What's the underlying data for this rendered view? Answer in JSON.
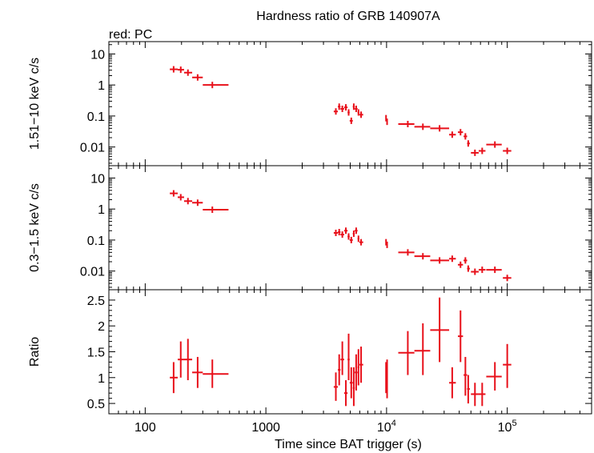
{
  "chart_data": {
    "type": "scatter",
    "title": "Hardness ratio of GRB 140907A",
    "subtitle": "red: PC",
    "xlabel": "Time since BAT trigger (s)",
    "xscale": "log",
    "xlim": [
      50,
      500000
    ],
    "x_tick_labels": [
      "100",
      "1000",
      "10",
      "10"
    ],
    "x_tick_exponents": [
      "",
      "",
      "4",
      "5"
    ],
    "series_color": "#e8101a",
    "panels": [
      {
        "name": "hard-band",
        "ylabel": "1.51−10 keV c/s",
        "yscale": "log",
        "ylim": [
          0.0025,
          25
        ],
        "y_ticks": [
          10,
          1,
          0.1,
          0.01
        ],
        "y_tick_labels": [
          "10",
          "1",
          "0.1",
          "0.01"
        ],
        "points": [
          {
            "x": 172,
            "xlo": 160,
            "xhi": 186,
            "y": 3.2
          },
          {
            "x": 197,
            "xlo": 186,
            "xhi": 210,
            "y": 3.1
          },
          {
            "x": 226,
            "xlo": 210,
            "xhi": 245,
            "y": 2.5
          },
          {
            "x": 272,
            "xlo": 245,
            "xhi": 300,
            "y": 1.75
          },
          {
            "x": 360,
            "xlo": 300,
            "xhi": 490,
            "y": 1.0
          },
          {
            "x": 3800,
            "xlo": 3650,
            "xhi": 3950,
            "y": 0.14
          },
          {
            "x": 4050,
            "xlo": 3950,
            "xhi": 4150,
            "y": 0.2
          },
          {
            "x": 4300,
            "xlo": 4150,
            "xhi": 4450,
            "y": 0.17
          },
          {
            "x": 4600,
            "xlo": 4450,
            "xhi": 4750,
            "y": 0.19
          },
          {
            "x": 4850,
            "xlo": 4750,
            "xhi": 4950,
            "y": 0.13
          },
          {
            "x": 5100,
            "xlo": 4950,
            "xhi": 5250,
            "y": 0.07
          },
          {
            "x": 5350,
            "xlo": 5250,
            "xhi": 5450,
            "y": 0.2
          },
          {
            "x": 5600,
            "xlo": 5450,
            "xhi": 5750,
            "y": 0.17
          },
          {
            "x": 5850,
            "xlo": 5750,
            "xhi": 5950,
            "y": 0.13
          },
          {
            "x": 6150,
            "xlo": 5950,
            "xhi": 6400,
            "y": 0.11
          },
          {
            "x": 9900,
            "xlo": 9800,
            "xhi": 10000,
            "y": 0.085
          },
          {
            "x": 10100,
            "xlo": 10000,
            "xhi": 10200,
            "y": 0.065
          },
          {
            "x": 15000,
            "xlo": 12500,
            "xhi": 17000,
            "y": 0.055
          },
          {
            "x": 20000,
            "xlo": 17000,
            "xhi": 23000,
            "y": 0.045
          },
          {
            "x": 27500,
            "xlo": 23000,
            "xhi": 33000,
            "y": 0.04
          },
          {
            "x": 35000,
            "xlo": 33000,
            "xhi": 37500,
            "y": 0.025
          },
          {
            "x": 41000,
            "xlo": 39000,
            "xhi": 43000,
            "y": 0.03
          },
          {
            "x": 45000,
            "xlo": 43500,
            "xhi": 46500,
            "y": 0.022
          },
          {
            "x": 47500,
            "xlo": 46500,
            "xhi": 49000,
            "y": 0.013
          },
          {
            "x": 54000,
            "xlo": 50000,
            "xhi": 58000,
            "y": 0.0065
          },
          {
            "x": 62000,
            "xlo": 58000,
            "xhi": 66000,
            "y": 0.0075
          },
          {
            "x": 79000,
            "xlo": 67000,
            "xhi": 90000,
            "y": 0.012
          },
          {
            "x": 100000,
            "xlo": 92000,
            "xhi": 108000,
            "y": 0.0075
          }
        ]
      },
      {
        "name": "soft-band",
        "ylabel": "0.3−1.5 keV c/s",
        "yscale": "log",
        "ylim": [
          0.0025,
          25
        ],
        "y_ticks": [
          10,
          1,
          0.1,
          0.01
        ],
        "y_tick_labels": [
          "10",
          "1",
          "0.1",
          "0.01"
        ],
        "points": [
          {
            "x": 172,
            "xlo": 160,
            "xhi": 186,
            "y": 3.2
          },
          {
            "x": 197,
            "xlo": 186,
            "xhi": 210,
            "y": 2.4
          },
          {
            "x": 226,
            "xlo": 210,
            "xhi": 245,
            "y": 1.8
          },
          {
            "x": 272,
            "xlo": 245,
            "xhi": 300,
            "y": 1.6
          },
          {
            "x": 360,
            "xlo": 300,
            "xhi": 490,
            "y": 0.95
          },
          {
            "x": 3800,
            "xlo": 3650,
            "xhi": 3950,
            "y": 0.17
          },
          {
            "x": 4050,
            "xlo": 3950,
            "xhi": 4150,
            "y": 0.18
          },
          {
            "x": 4300,
            "xlo": 4150,
            "xhi": 4450,
            "y": 0.15
          },
          {
            "x": 4600,
            "xlo": 4450,
            "xhi": 4750,
            "y": 0.2
          },
          {
            "x": 4850,
            "xlo": 4750,
            "xhi": 4950,
            "y": 0.13
          },
          {
            "x": 5100,
            "xlo": 4950,
            "xhi": 5250,
            "y": 0.1
          },
          {
            "x": 5350,
            "xlo": 5250,
            "xhi": 5450,
            "y": 0.16
          },
          {
            "x": 5600,
            "xlo": 5450,
            "xhi": 5750,
            "y": 0.2
          },
          {
            "x": 5850,
            "xlo": 5750,
            "xhi": 5950,
            "y": 0.11
          },
          {
            "x": 6150,
            "xlo": 5950,
            "xhi": 6400,
            "y": 0.085
          },
          {
            "x": 9900,
            "xlo": 9800,
            "xhi": 10000,
            "y": 0.085
          },
          {
            "x": 10100,
            "xlo": 10000,
            "xhi": 10200,
            "y": 0.07
          },
          {
            "x": 15000,
            "xlo": 12500,
            "xhi": 17000,
            "y": 0.04
          },
          {
            "x": 20000,
            "xlo": 17000,
            "xhi": 23000,
            "y": 0.03
          },
          {
            "x": 27500,
            "xlo": 23000,
            "xhi": 33000,
            "y": 0.022
          },
          {
            "x": 35000,
            "xlo": 33000,
            "xhi": 37500,
            "y": 0.025
          },
          {
            "x": 41000,
            "xlo": 39000,
            "xhi": 43000,
            "y": 0.016
          },
          {
            "x": 45000,
            "xlo": 43500,
            "xhi": 46500,
            "y": 0.022
          },
          {
            "x": 47500,
            "xlo": 46500,
            "xhi": 49000,
            "y": 0.012
          },
          {
            "x": 54000,
            "xlo": 50000,
            "xhi": 58000,
            "y": 0.0095
          },
          {
            "x": 62000,
            "xlo": 58000,
            "xhi": 66000,
            "y": 0.011
          },
          {
            "x": 79000,
            "xlo": 67000,
            "xhi": 90000,
            "y": 0.011
          },
          {
            "x": 100000,
            "xlo": 92000,
            "xhi": 108000,
            "y": 0.006
          }
        ]
      },
      {
        "name": "ratio",
        "ylabel": "Ratio",
        "yscale": "linear",
        "ylim": [
          0.3,
          2.7
        ],
        "y_ticks": [
          2.5,
          2,
          1.5,
          1,
          0.5
        ],
        "y_tick_labels": [
          "2.5",
          "2",
          "1.5",
          "1",
          "0.5"
        ],
        "points": [
          {
            "x": 172,
            "xlo": 160,
            "xhi": 186,
            "y": 1.0,
            "ylo": 0.7,
            "yhi": 1.3
          },
          {
            "x": 197,
            "xlo": 186,
            "xhi": 210,
            "y": 1.35,
            "ylo": 1.0,
            "yhi": 1.7
          },
          {
            "x": 226,
            "xlo": 210,
            "xhi": 245,
            "y": 1.35,
            "ylo": 0.95,
            "yhi": 1.75
          },
          {
            "x": 272,
            "xlo": 245,
            "xhi": 300,
            "y": 1.1,
            "ylo": 0.8,
            "yhi": 1.4
          },
          {
            "x": 360,
            "xlo": 300,
            "xhi": 490,
            "y": 1.07,
            "ylo": 0.8,
            "yhi": 1.35
          },
          {
            "x": 3800,
            "xlo": 3650,
            "xhi": 3950,
            "y": 0.82,
            "ylo": 0.55,
            "yhi": 1.1
          },
          {
            "x": 4050,
            "xlo": 3950,
            "xhi": 4150,
            "y": 1.15,
            "ylo": 0.85,
            "yhi": 1.45
          },
          {
            "x": 4300,
            "xlo": 4150,
            "xhi": 4450,
            "y": 1.35,
            "ylo": 1.05,
            "yhi": 1.7
          },
          {
            "x": 4600,
            "xlo": 4450,
            "xhi": 4750,
            "y": 0.7,
            "ylo": 0.45,
            "yhi": 0.95
          },
          {
            "x": 4850,
            "xlo": 4750,
            "xhi": 4950,
            "y": 1.35,
            "ylo": 0.95,
            "yhi": 1.85
          },
          {
            "x": 5100,
            "xlo": 4950,
            "xhi": 5250,
            "y": 0.9,
            "ylo": 0.6,
            "yhi": 1.2
          },
          {
            "x": 5350,
            "xlo": 5250,
            "xhi": 5450,
            "y": 0.8,
            "ylo": 0.45,
            "yhi": 1.2
          },
          {
            "x": 5600,
            "xlo": 5450,
            "xhi": 5750,
            "y": 1.1,
            "ylo": 0.75,
            "yhi": 1.45
          },
          {
            "x": 5850,
            "xlo": 5750,
            "xhi": 5950,
            "y": 1.2,
            "ylo": 0.85,
            "yhi": 1.55
          },
          {
            "x": 6150,
            "xlo": 5950,
            "xhi": 6400,
            "y": 1.25,
            "ylo": 0.9,
            "yhi": 1.6
          },
          {
            "x": 9900,
            "xlo": 9800,
            "xhi": 10000,
            "y": 1.0,
            "ylo": 0.7,
            "yhi": 1.3
          },
          {
            "x": 10100,
            "xlo": 10000,
            "xhi": 10200,
            "y": 1.0,
            "ylo": 0.6,
            "yhi": 1.35
          },
          {
            "x": 15000,
            "xlo": 12500,
            "xhi": 17000,
            "y": 1.48,
            "ylo": 1.05,
            "yhi": 1.9
          },
          {
            "x": 20000,
            "xlo": 17000,
            "xhi": 23000,
            "y": 1.52,
            "ylo": 1.05,
            "yhi": 2.05
          },
          {
            "x": 27500,
            "xlo": 23000,
            "xhi": 33000,
            "y": 1.92,
            "ylo": 1.3,
            "yhi": 2.55
          },
          {
            "x": 35000,
            "xlo": 33000,
            "xhi": 37500,
            "y": 0.9,
            "ylo": 0.6,
            "yhi": 1.2
          },
          {
            "x": 41000,
            "xlo": 39000,
            "xhi": 43000,
            "y": 1.8,
            "ylo": 1.3,
            "yhi": 2.3
          },
          {
            "x": 45000,
            "xlo": 43500,
            "xhi": 46500,
            "y": 1.05,
            "ylo": 0.65,
            "yhi": 1.4
          },
          {
            "x": 47500,
            "xlo": 46500,
            "xhi": 49000,
            "y": 0.78,
            "ylo": 0.5,
            "yhi": 1.05
          },
          {
            "x": 54000,
            "xlo": 50000,
            "xhi": 58000,
            "y": 0.68,
            "ylo": 0.45,
            "yhi": 0.9
          },
          {
            "x": 62000,
            "xlo": 58000,
            "xhi": 66000,
            "y": 0.68,
            "ylo": 0.45,
            "yhi": 0.9
          },
          {
            "x": 79000,
            "xlo": 67000,
            "xhi": 90000,
            "y": 1.02,
            "ylo": 0.75,
            "yhi": 1.3
          },
          {
            "x": 100000,
            "xlo": 92000,
            "xhi": 108000,
            "y": 1.25,
            "ylo": 0.8,
            "yhi": 1.65
          }
        ]
      }
    ]
  }
}
